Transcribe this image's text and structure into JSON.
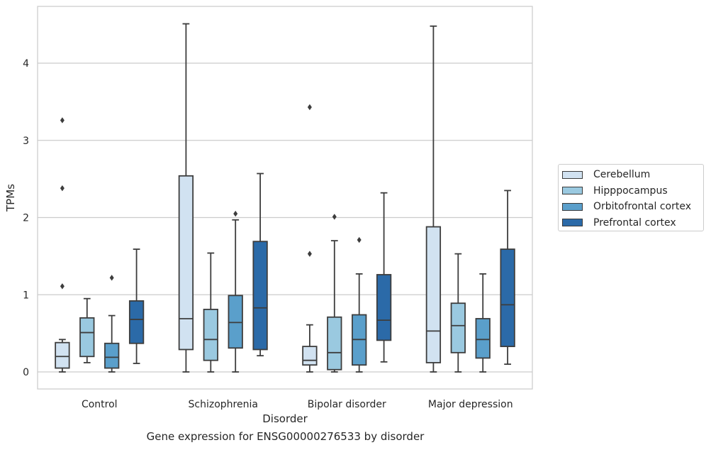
{
  "chart_data": {
    "type": "boxplot",
    "title": "Gene expression for ENSG00000276533 by disorder",
    "xlabel": "Disorder",
    "ylabel": "TPMs",
    "ylim": [
      -0.22,
      4.72
    ],
    "yticks": [
      0,
      1,
      2,
      3,
      4
    ],
    "grid": true,
    "legend_position": "right",
    "categories": [
      "Control",
      "Schizophrenia",
      "Bipolar disorder",
      "Major depression"
    ],
    "series": [
      {
        "name": "Cerebellum",
        "color": "#d1e2f1",
        "boxes": [
          {
            "whislo": 0.0,
            "q1": 0.05,
            "med": 0.2,
            "q3": 0.38,
            "whishi": 0.42,
            "fliers": [
              1.11,
              2.38,
              3.26
            ]
          },
          {
            "whislo": 0.0,
            "q1": 0.29,
            "med": 0.69,
            "q3": 2.54,
            "whishi": 4.51,
            "fliers": []
          },
          {
            "whislo": 0.0,
            "q1": 0.09,
            "med": 0.15,
            "q3": 0.33,
            "whishi": 0.61,
            "fliers": [
              1.53,
              3.43
            ]
          },
          {
            "whislo": 0.0,
            "q1": 0.12,
            "med": 0.53,
            "q3": 1.88,
            "whishi": 4.48,
            "fliers": []
          }
        ]
      },
      {
        "name": "Hipppocampus",
        "color": "#9ac9e0",
        "boxes": [
          {
            "whislo": 0.12,
            "q1": 0.2,
            "med": 0.51,
            "q3": 0.7,
            "whishi": 0.95,
            "fliers": []
          },
          {
            "whislo": 0.0,
            "q1": 0.15,
            "med": 0.42,
            "q3": 0.81,
            "whishi": 1.54,
            "fliers": []
          },
          {
            "whislo": 0.0,
            "q1": 0.03,
            "med": 0.25,
            "q3": 0.71,
            "whishi": 1.7,
            "fliers": [
              2.01
            ]
          },
          {
            "whislo": 0.0,
            "q1": 0.25,
            "med": 0.6,
            "q3": 0.89,
            "whishi": 1.53,
            "fliers": []
          }
        ]
      },
      {
        "name": "Orbitofrontal cortex",
        "color": "#5a9fcb",
        "boxes": [
          {
            "whislo": 0.0,
            "q1": 0.05,
            "med": 0.19,
            "q3": 0.37,
            "whishi": 0.73,
            "fliers": [
              1.22
            ]
          },
          {
            "whislo": 0.0,
            "q1": 0.31,
            "med": 0.64,
            "q3": 0.99,
            "whishi": 1.97,
            "fliers": [
              2.05
            ]
          },
          {
            "whislo": 0.0,
            "q1": 0.09,
            "med": 0.42,
            "q3": 0.74,
            "whishi": 1.27,
            "fliers": [
              1.71
            ]
          },
          {
            "whislo": 0.0,
            "q1": 0.18,
            "med": 0.42,
            "q3": 0.69,
            "whishi": 1.27,
            "fliers": []
          }
        ]
      },
      {
        "name": "Prefrontal cortex",
        "color": "#2b6aa8",
        "boxes": [
          {
            "whislo": 0.11,
            "q1": 0.37,
            "med": 0.68,
            "q3": 0.92,
            "whishi": 1.59,
            "fliers": []
          },
          {
            "whislo": 0.21,
            "q1": 0.29,
            "med": 0.83,
            "q3": 1.69,
            "whishi": 2.57,
            "fliers": []
          },
          {
            "whislo": 0.13,
            "q1": 0.41,
            "med": 0.67,
            "q3": 1.26,
            "whishi": 2.32,
            "fliers": []
          },
          {
            "whislo": 0.1,
            "q1": 0.33,
            "med": 0.87,
            "q3": 1.59,
            "whishi": 2.35,
            "fliers": []
          }
        ]
      }
    ]
  }
}
